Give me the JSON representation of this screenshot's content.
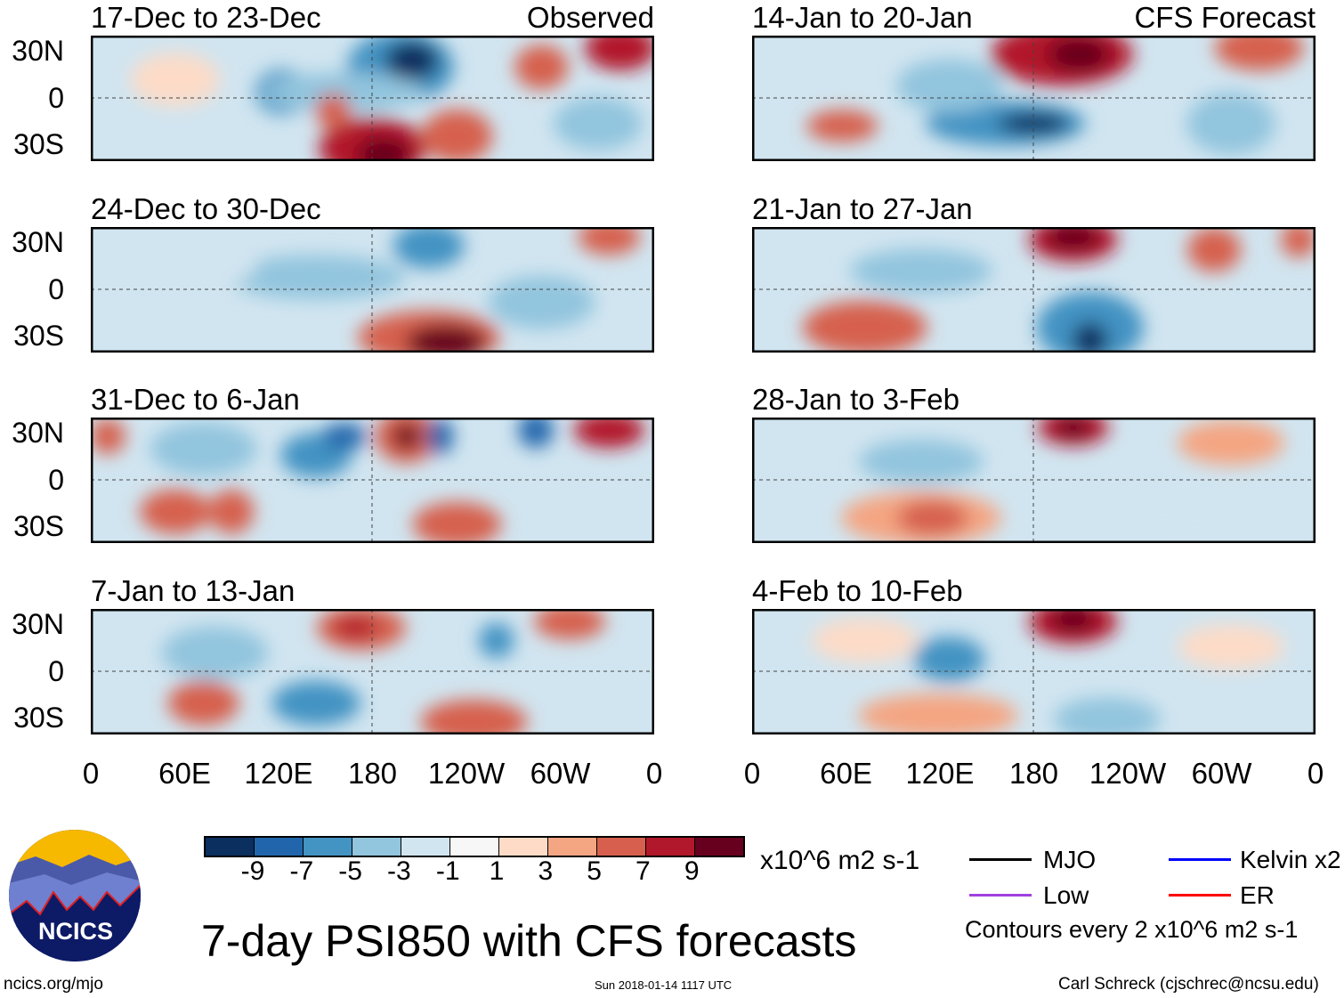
{
  "header": {
    "left_label": "Observed",
    "right_label": "CFS Forecast"
  },
  "chart_data": {
    "type": "heatmap",
    "title": "7-day PSI850 with CFS forecasts",
    "units": "x10^6 m2 s-1",
    "lat_ticks": [
      "30N",
      "0",
      "30S"
    ],
    "lon_ticks": [
      "0",
      "60E",
      "120E",
      "180",
      "120W",
      "60W",
      "0"
    ],
    "panels": [
      {
        "period": "17-Dec to 23-Dec",
        "column": "Observed"
      },
      {
        "period": "24-Dec to 30-Dec",
        "column": "Observed"
      },
      {
        "period": "31-Dec to 6-Jan",
        "column": "Observed"
      },
      {
        "period": "7-Jan to 13-Jan",
        "column": "Observed"
      },
      {
        "period": "14-Jan to 20-Jan",
        "column": "CFS Forecast"
      },
      {
        "period": "21-Jan to 27-Jan",
        "column": "CFS Forecast"
      },
      {
        "period": "28-Jan to 3-Feb",
        "column": "CFS Forecast"
      },
      {
        "period": "4-Feb to 10-Feb",
        "column": "CFS Forecast"
      }
    ],
    "colorbar": {
      "labels": [
        "-9",
        "-7",
        "-5",
        "-3",
        "-1",
        "1",
        "3",
        "5",
        "7",
        "9"
      ],
      "colors": [
        "#0b2f5f",
        "#2166ac",
        "#4393c3",
        "#92c5de",
        "#d1e5f0",
        "#f7f7f7",
        "#fddbc7",
        "#f4a582",
        "#d6604d",
        "#b2182b",
        "#67001f"
      ]
    },
    "legend": [
      {
        "label": "MJO",
        "color": "#000000"
      },
      {
        "label": "Kelvin x2",
        "color": "#0000ff"
      },
      {
        "label": "Low",
        "color": "#a040e0"
      },
      {
        "label": "ER",
        "color": "#ff0000"
      }
    ],
    "contour_note": "Contours every 2 x10^6 m2 s-1"
  },
  "footer": {
    "site": "ncics.org/mjo",
    "timestamp": "Sun 2018-01-14 1117 UTC",
    "author": "Carl Schreck (cjschrec@ncsu.edu)",
    "logo_text": "NCICS"
  }
}
